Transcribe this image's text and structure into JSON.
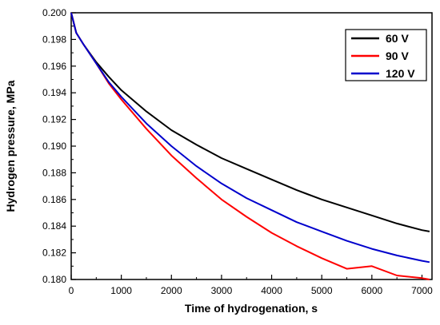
{
  "chart_data": {
    "type": "line",
    "title": "",
    "xlabel": "Time of hydrogenation, s",
    "ylabel": "Hydrogen pressure, MPa",
    "xlim": [
      0,
      7200
    ],
    "ylim": [
      0.18,
      0.2
    ],
    "x_ticks": [
      "0",
      "1000",
      "2000",
      "3000",
      "4000",
      "5000",
      "6000",
      "7000"
    ],
    "y_ticks": [
      "0.180",
      "0.182",
      "0.184",
      "0.186",
      "0.188",
      "0.190",
      "0.192",
      "0.194",
      "0.196",
      "0.198",
      "0.200"
    ],
    "grid": false,
    "legend_position": "top-right",
    "series": [
      {
        "name": "60 V",
        "color": "#000000",
        "points": [
          [
            0,
            0.2
          ],
          [
            100,
            0.1985
          ],
          [
            250,
            0.1976
          ],
          [
            500,
            0.1963
          ],
          [
            750,
            0.1952
          ],
          [
            1000,
            0.1942
          ],
          [
            1500,
            0.1926
          ],
          [
            2000,
            0.1912
          ],
          [
            2500,
            0.1901
          ],
          [
            3000,
            0.1891
          ],
          [
            3500,
            0.1883
          ],
          [
            4000,
            0.1875
          ],
          [
            4500,
            0.1867
          ],
          [
            5000,
            0.186
          ],
          [
            5500,
            0.1854
          ],
          [
            6000,
            0.1848
          ],
          [
            6500,
            0.1842
          ],
          [
            7000,
            0.1837
          ],
          [
            7150,
            0.1836
          ]
        ]
      },
      {
        "name": "90 V",
        "color": "#ff0000",
        "points": [
          [
            0,
            0.2
          ],
          [
            100,
            0.1985
          ],
          [
            250,
            0.1976
          ],
          [
            500,
            0.1962
          ],
          [
            750,
            0.1947
          ],
          [
            1000,
            0.1935
          ],
          [
            1500,
            0.1913
          ],
          [
            2000,
            0.1893
          ],
          [
            2500,
            0.1876
          ],
          [
            3000,
            0.186
          ],
          [
            3500,
            0.1847
          ],
          [
            4000,
            0.1835
          ],
          [
            4500,
            0.1825
          ],
          [
            5000,
            0.1816
          ],
          [
            5500,
            0.1808
          ],
          [
            6000,
            0.181
          ],
          [
            6500,
            0.1803
          ],
          [
            7000,
            0.1801
          ],
          [
            7150,
            0.18
          ]
        ]
      },
      {
        "name": "120 V",
        "color": "#0000cc",
        "points": [
          [
            0,
            0.2
          ],
          [
            100,
            0.1985
          ],
          [
            250,
            0.1976
          ],
          [
            500,
            0.1962
          ],
          [
            750,
            0.1948
          ],
          [
            1000,
            0.1937
          ],
          [
            1500,
            0.1917
          ],
          [
            2000,
            0.19
          ],
          [
            2500,
            0.1885
          ],
          [
            3000,
            0.1872
          ],
          [
            3500,
            0.1861
          ],
          [
            4000,
            0.1852
          ],
          [
            4500,
            0.1843
          ],
          [
            5000,
            0.1836
          ],
          [
            5500,
            0.1829
          ],
          [
            6000,
            0.1823
          ],
          [
            6500,
            0.1818
          ],
          [
            7000,
            0.1814
          ],
          [
            7150,
            0.1813
          ]
        ]
      }
    ]
  }
}
